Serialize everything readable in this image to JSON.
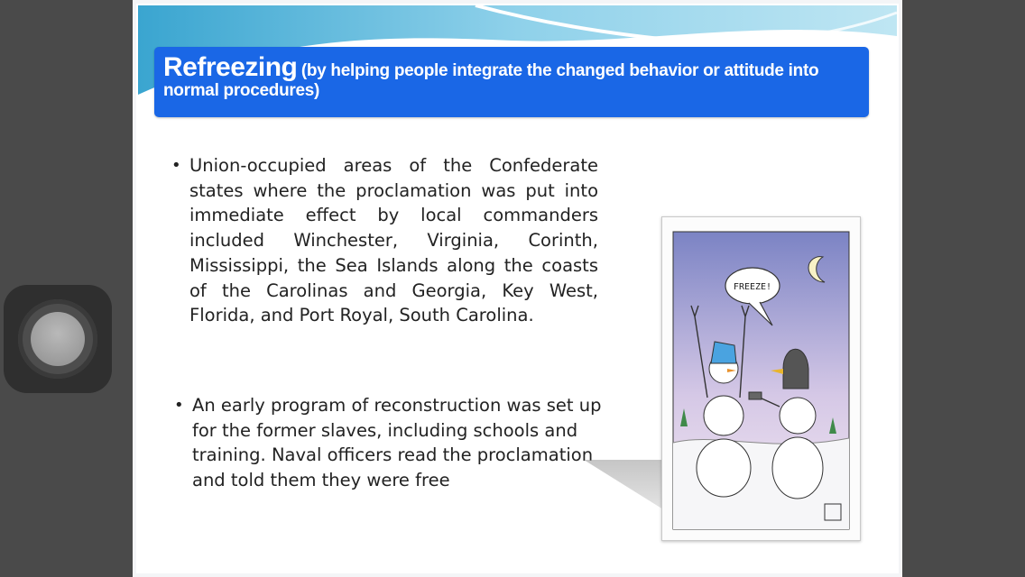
{
  "slide": {
    "title": "Refreezing",
    "subtitle_line1": "(by helping people integrate the changed behavior or attitude into",
    "subtitle_line2": "normal procedures)",
    "bullets": [
      {
        "marker": "•",
        "text": "Union-occupied areas of the Confederate states where the proclamation was put into immediate effect by local commanders included Winchester, Virginia, Corinth, Mississippi, the Sea Islands along the coasts of the Carolinas and Georgia, Key West, Florida, and Port Royal, South Carolina."
      },
      {
        "marker": "•",
        "text": "An early program of reconstruction was set up for the former slaves, including schools and training. Naval officers read the proclamation and told them they were free"
      }
    ],
    "cartoon": {
      "speech": "FREEZE!"
    }
  },
  "colors": {
    "title_bar": "#1a67e6",
    "frame": "#4a4a4a",
    "slide_bg": "#ffffff"
  }
}
